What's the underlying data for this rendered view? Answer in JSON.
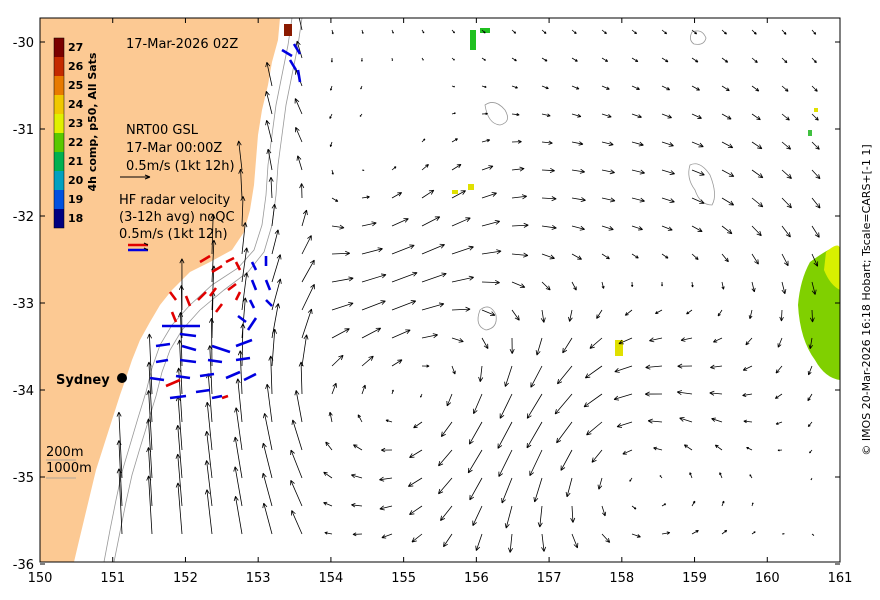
{
  "map": {
    "date_title": "17-Mar-2026 02Z",
    "x_ticks": [
      "150",
      "151",
      "152",
      "153",
      "154",
      "155",
      "156",
      "157",
      "158",
      "159",
      "160",
      "161"
    ],
    "y_ticks": [
      "-30",
      "-31",
      "-32",
      "-33",
      "-34",
      "-35",
      "-36"
    ],
    "city_label": "Sydney",
    "colorbar": {
      "title": "4h comp, p50, All Sats",
      "labels": [
        "27",
        "26",
        "25",
        "24",
        "23",
        "22",
        "21",
        "20",
        "19",
        "18"
      ],
      "colors": [
        "#7a0000",
        "#c42a00",
        "#e87a00",
        "#f0c800",
        "#e0f000",
        "#5ac800",
        "#00b050",
        "#00a0c0",
        "#0050e0",
        "#000080"
      ]
    },
    "legend_gsl": {
      "line1": "NRT00 GSL",
      "line2": "17-Mar 00:00Z",
      "line3": "0.5m/s (1kt 12h)"
    },
    "legend_hf": {
      "line1": "HF radar velocity",
      "line2": "(3-12h avg) noQC",
      "line3": "0.5m/s (1kt 12h)"
    },
    "depth_legend": {
      "line1": "200m",
      "line2": "1000m"
    },
    "credit": "© IMOS 20-Mar-2026 16:18 Hobart; Tscale=CARS+[-1 1]",
    "colors": {
      "land": "#fcc993",
      "arrow": "#000000",
      "hf_red": "#e00000",
      "hf_blue": "#0000e0",
      "contour": "#999999"
    }
  }
}
